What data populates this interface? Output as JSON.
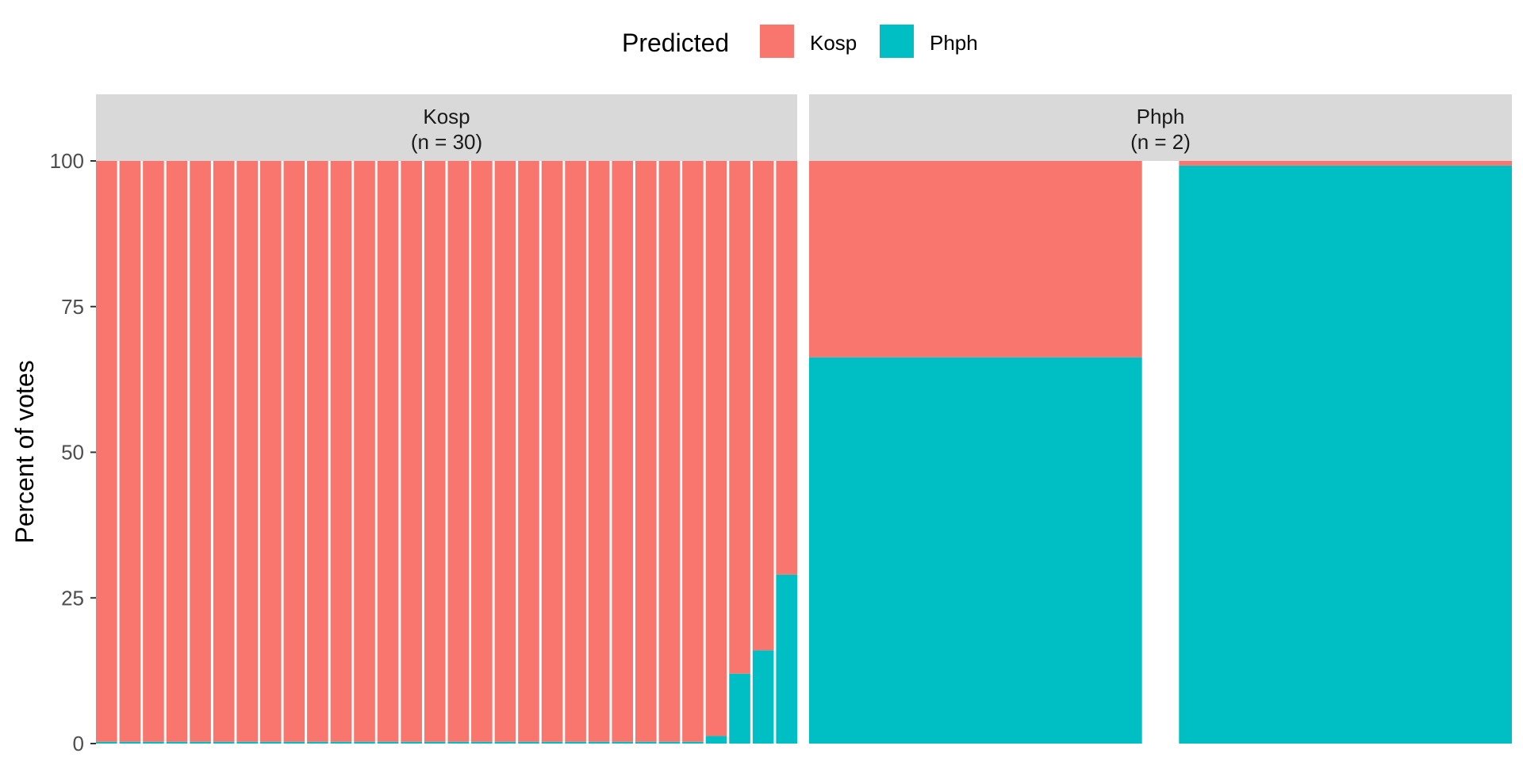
{
  "chart_data": {
    "type": "bar",
    "stacked": true,
    "ylabel": "Percent of votes",
    "xlabel": "",
    "ylim": [
      0,
      100
    ],
    "yticks": [
      0,
      25,
      50,
      75,
      100
    ],
    "legend": {
      "title": "Predicted",
      "position": "top",
      "entries": [
        {
          "name": "Kosp",
          "color": "#F8766D"
        },
        {
          "name": "Phph",
          "color": "#00BFC4"
        }
      ]
    },
    "facets": [
      {
        "label": "Kosp",
        "n_label": "(n = 30)",
        "bars": [
          {
            "Phph": 0.3,
            "Kosp": 99.7
          },
          {
            "Phph": 0.3,
            "Kosp": 99.7
          },
          {
            "Phph": 0.3,
            "Kosp": 99.7
          },
          {
            "Phph": 0.3,
            "Kosp": 99.7
          },
          {
            "Phph": 0.3,
            "Kosp": 99.7
          },
          {
            "Phph": 0.3,
            "Kosp": 99.7
          },
          {
            "Phph": 0.3,
            "Kosp": 99.7
          },
          {
            "Phph": 0.3,
            "Kosp": 99.7
          },
          {
            "Phph": 0.3,
            "Kosp": 99.7
          },
          {
            "Phph": 0.3,
            "Kosp": 99.7
          },
          {
            "Phph": 0.3,
            "Kosp": 99.7
          },
          {
            "Phph": 0.3,
            "Kosp": 99.7
          },
          {
            "Phph": 0.3,
            "Kosp": 99.7
          },
          {
            "Phph": 0.3,
            "Kosp": 99.7
          },
          {
            "Phph": 0.3,
            "Kosp": 99.7
          },
          {
            "Phph": 0.3,
            "Kosp": 99.7
          },
          {
            "Phph": 0.3,
            "Kosp": 99.7
          },
          {
            "Phph": 0.3,
            "Kosp": 99.7
          },
          {
            "Phph": 0.3,
            "Kosp": 99.7
          },
          {
            "Phph": 0.3,
            "Kosp": 99.7
          },
          {
            "Phph": 0.3,
            "Kosp": 99.7
          },
          {
            "Phph": 0.3,
            "Kosp": 99.7
          },
          {
            "Phph": 0.3,
            "Kosp": 99.7
          },
          {
            "Phph": 0.3,
            "Kosp": 99.7
          },
          {
            "Phph": 0.3,
            "Kosp": 99.7
          },
          {
            "Phph": 0.3,
            "Kosp": 99.7
          },
          {
            "Phph": 1.3,
            "Kosp": 98.7
          },
          {
            "Phph": 12,
            "Kosp": 88
          },
          {
            "Phph": 16,
            "Kosp": 84
          },
          {
            "Phph": 29,
            "Kosp": 71
          }
        ]
      },
      {
        "label": "Phph",
        "n_label": "(n = 2)",
        "bars": [
          {
            "Phph": 66.3,
            "Kosp": 33.7
          },
          {
            "Phph": 99.2,
            "Kosp": 0.8
          }
        ]
      }
    ],
    "grid": false,
    "background": "white"
  }
}
